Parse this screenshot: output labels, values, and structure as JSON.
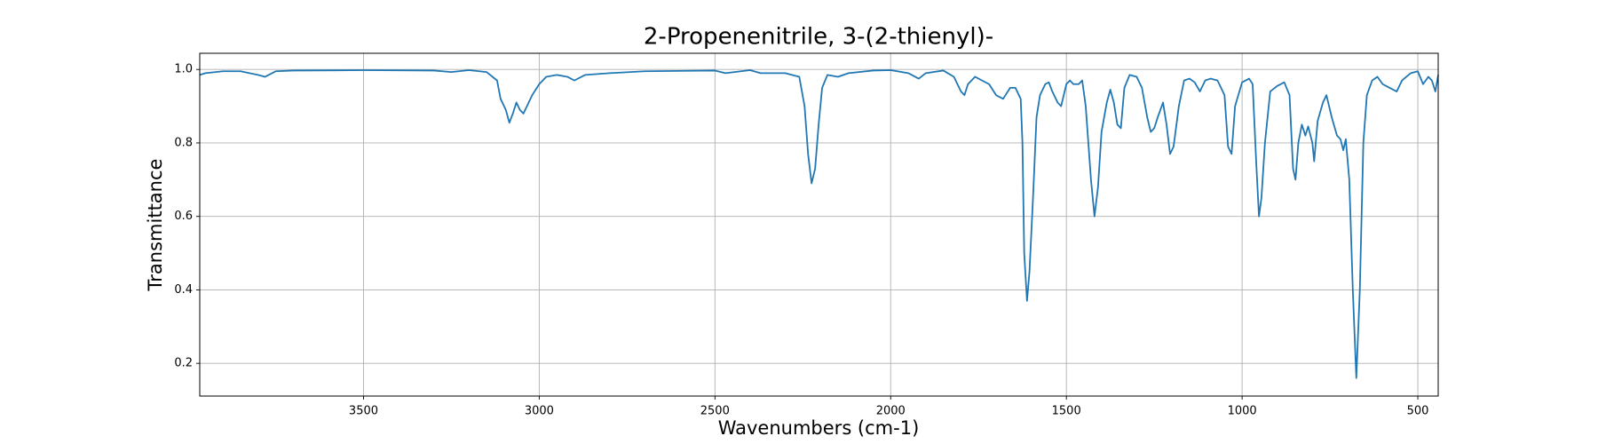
{
  "chart_data": {
    "type": "line",
    "title": "2-Propenenitrile, 3-(2-thienyl)-",
    "x_label": "Wavenumbers (cm-1)",
    "y_label": "Transmittance",
    "x": [
      3966,
      3950,
      3900,
      3850,
      3800,
      3780,
      3750,
      3700,
      3500,
      3300,
      3250,
      3200,
      3150,
      3120,
      3110,
      3095,
      3085,
      3075,
      3065,
      3055,
      3045,
      3035,
      3020,
      3000,
      2980,
      2950,
      2920,
      2900,
      2870,
      2800,
      2700,
      2500,
      2470,
      2400,
      2370,
      2300,
      2260,
      2245,
      2235,
      2225,
      2215,
      2205,
      2195,
      2180,
      2150,
      2120,
      2050,
      2000,
      1950,
      1920,
      1900,
      1850,
      1820,
      1800,
      1790,
      1780,
      1760,
      1740,
      1720,
      1700,
      1680,
      1660,
      1645,
      1630,
      1625,
      1620,
      1612,
      1605,
      1595,
      1585,
      1575,
      1560,
      1550,
      1540,
      1525,
      1515,
      1500,
      1490,
      1480,
      1465,
      1455,
      1445,
      1430,
      1420,
      1410,
      1400,
      1385,
      1375,
      1365,
      1355,
      1345,
      1335,
      1320,
      1300,
      1285,
      1270,
      1260,
      1250,
      1240,
      1225,
      1215,
      1205,
      1195,
      1180,
      1165,
      1150,
      1135,
      1120,
      1105,
      1090,
      1070,
      1050,
      1040,
      1030,
      1020,
      1000,
      980,
      970,
      960,
      952,
      945,
      935,
      920,
      900,
      880,
      865,
      855,
      848,
      840,
      830,
      820,
      812,
      800,
      795,
      785,
      770,
      760,
      745,
      730,
      720,
      712,
      705,
      695,
      685,
      675,
      665,
      655,
      645,
      630,
      615,
      600,
      580,
      560,
      545,
      520,
      500,
      485,
      470,
      460,
      450,
      442
    ],
    "series": [
      {
        "name": "Transmittance",
        "color": "#1f77b4",
        "values": [
          0.985,
          0.99,
          0.995,
          0.995,
          0.985,
          0.98,
          0.995,
          0.997,
          0.998,
          0.997,
          0.993,
          0.998,
          0.993,
          0.97,
          0.92,
          0.89,
          0.855,
          0.88,
          0.91,
          0.89,
          0.88,
          0.9,
          0.93,
          0.96,
          0.98,
          0.985,
          0.98,
          0.97,
          0.985,
          0.99,
          0.995,
          0.997,
          0.99,
          0.998,
          0.99,
          0.99,
          0.98,
          0.9,
          0.77,
          0.69,
          0.73,
          0.85,
          0.95,
          0.985,
          0.98,
          0.99,
          0.997,
          0.998,
          0.99,
          0.975,
          0.99,
          0.997,
          0.98,
          0.94,
          0.93,
          0.96,
          0.98,
          0.97,
          0.96,
          0.93,
          0.92,
          0.95,
          0.95,
          0.92,
          0.8,
          0.5,
          0.37,
          0.45,
          0.65,
          0.87,
          0.93,
          0.96,
          0.965,
          0.94,
          0.91,
          0.9,
          0.96,
          0.97,
          0.96,
          0.96,
          0.97,
          0.9,
          0.7,
          0.6,
          0.68,
          0.83,
          0.91,
          0.945,
          0.91,
          0.85,
          0.84,
          0.95,
          0.985,
          0.98,
          0.95,
          0.87,
          0.83,
          0.84,
          0.87,
          0.91,
          0.85,
          0.77,
          0.79,
          0.9,
          0.97,
          0.975,
          0.965,
          0.94,
          0.97,
          0.975,
          0.97,
          0.93,
          0.79,
          0.77,
          0.9,
          0.965,
          0.975,
          0.96,
          0.75,
          0.6,
          0.65,
          0.8,
          0.94,
          0.955,
          0.965,
          0.93,
          0.73,
          0.7,
          0.8,
          0.85,
          0.82,
          0.845,
          0.8,
          0.75,
          0.86,
          0.91,
          0.93,
          0.87,
          0.82,
          0.81,
          0.78,
          0.81,
          0.7,
          0.4,
          0.16,
          0.4,
          0.8,
          0.93,
          0.97,
          0.98,
          0.96,
          0.95,
          0.94,
          0.97,
          0.99,
          0.995,
          0.96,
          0.98,
          0.97,
          0.94,
          0.985
        ]
      }
    ],
    "xlim": [
      3966,
      442
    ],
    "ylim": [
      0.111,
      1.044
    ],
    "xticks": [
      3500,
      3000,
      2500,
      2000,
      1500,
      1000,
      500
    ],
    "yticks": [
      0.2,
      0.4,
      0.6,
      0.8,
      {
        "value": 1,
        "label": "1.0"
      }
    ],
    "grid": true
  }
}
